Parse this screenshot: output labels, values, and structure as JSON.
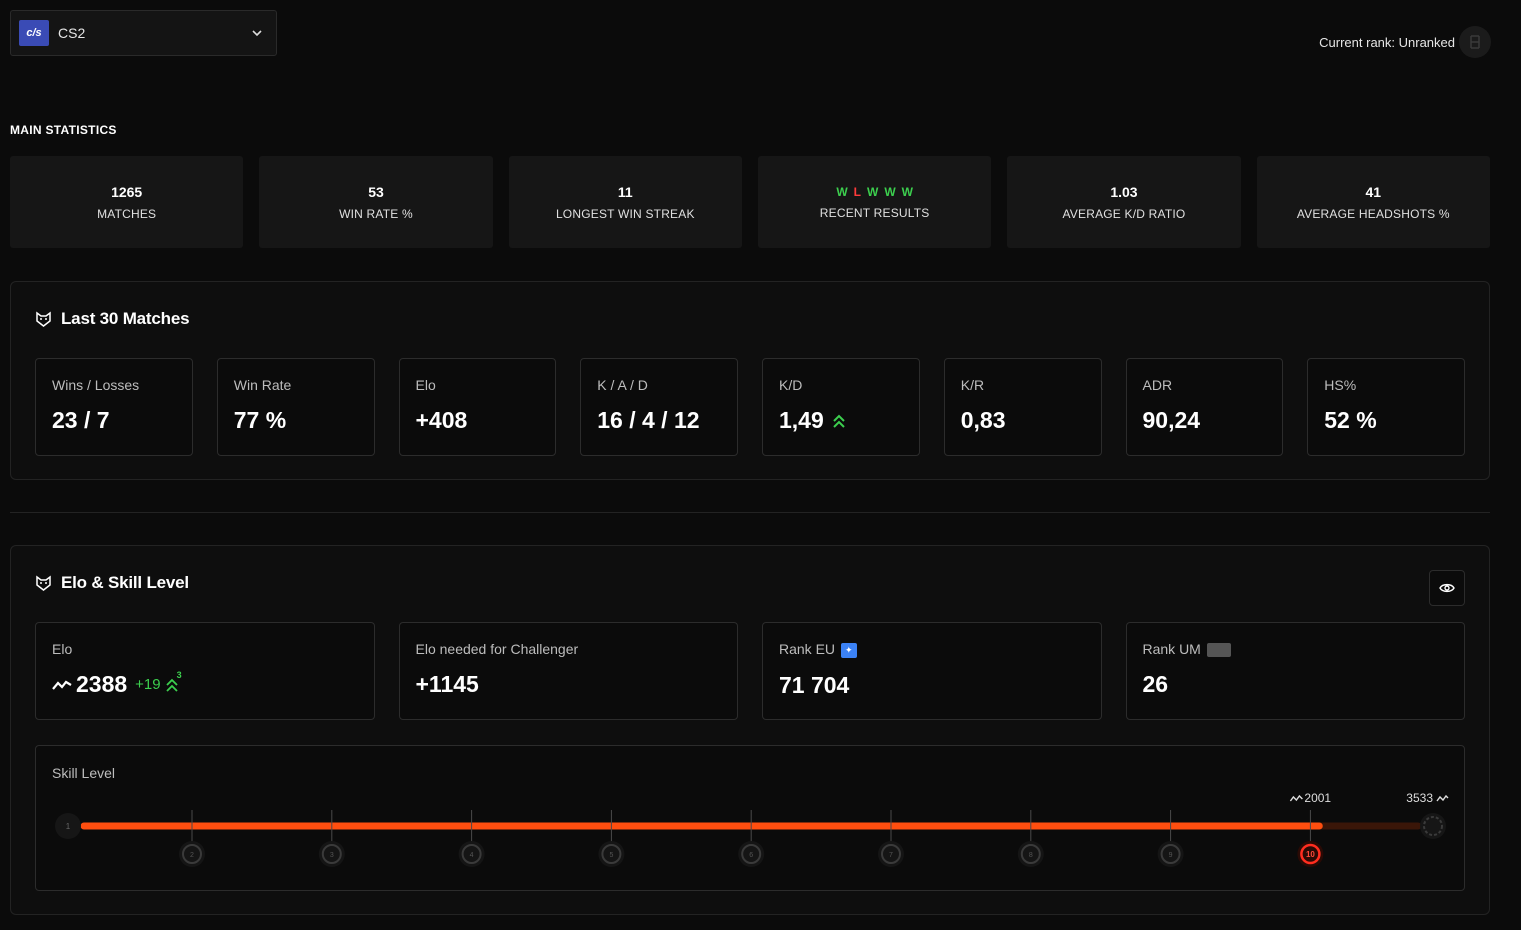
{
  "game_select": {
    "logo_text": "c/s",
    "name": "CS2"
  },
  "current_rank": {
    "label": "Current rank: Unranked"
  },
  "main_statistics": {
    "title": "MAIN STATISTICS",
    "matches": {
      "value": "1265",
      "label": "MATCHES"
    },
    "win_rate": {
      "value": "53",
      "label": "WIN RATE %"
    },
    "longest_streak": {
      "value": "11",
      "label": "LONGEST WIN STREAK"
    },
    "recent_results": {
      "results": [
        "W",
        "L",
        "W",
        "W",
        "W"
      ],
      "label": "RECENT RESULTS"
    },
    "avg_kd": {
      "value": "1.03",
      "label": "AVERAGE K/D RATIO"
    },
    "avg_hs": {
      "value": "41",
      "label": "AVERAGE HEADSHOTS %"
    }
  },
  "last30": {
    "title": "Last 30 Matches",
    "cards": [
      {
        "label": "Wins / Losses",
        "value": "23 / 7"
      },
      {
        "label": "Win Rate",
        "value": "77 %"
      },
      {
        "label": "Elo",
        "value": "+408"
      },
      {
        "label": "K / A / D",
        "value": "16 / 4 / 12"
      },
      {
        "label": "K/D",
        "value": "1,49"
      },
      {
        "label": "K/R",
        "value": "0,83"
      },
      {
        "label": "ADR",
        "value": "90,24"
      },
      {
        "label": "HS%",
        "value": "52 %"
      }
    ]
  },
  "elo_skill": {
    "title": "Elo & Skill Level",
    "elo": {
      "label": "Elo",
      "value": "2388",
      "delta": "+19",
      "delta_count": "3"
    },
    "challenger": {
      "label": "Elo needed for Challenger",
      "value": "+1145"
    },
    "rank_eu": {
      "label": "Rank EU",
      "value": "71 704"
    },
    "rank_um": {
      "label": "Rank UM",
      "value": "26"
    },
    "skill": {
      "label": "Skill Level",
      "levels": [
        "1",
        "2",
        "3",
        "4",
        "5",
        "6",
        "7",
        "8",
        "9",
        "10"
      ],
      "current_level": 10,
      "level10_elo": "2001",
      "max_elo": "3533",
      "progress_fraction": 0.926
    }
  },
  "colors": {
    "accent_orange": "#ff4e0f",
    "win_green": "#3ccf4e",
    "loss_red": "#ff3b3b"
  }
}
